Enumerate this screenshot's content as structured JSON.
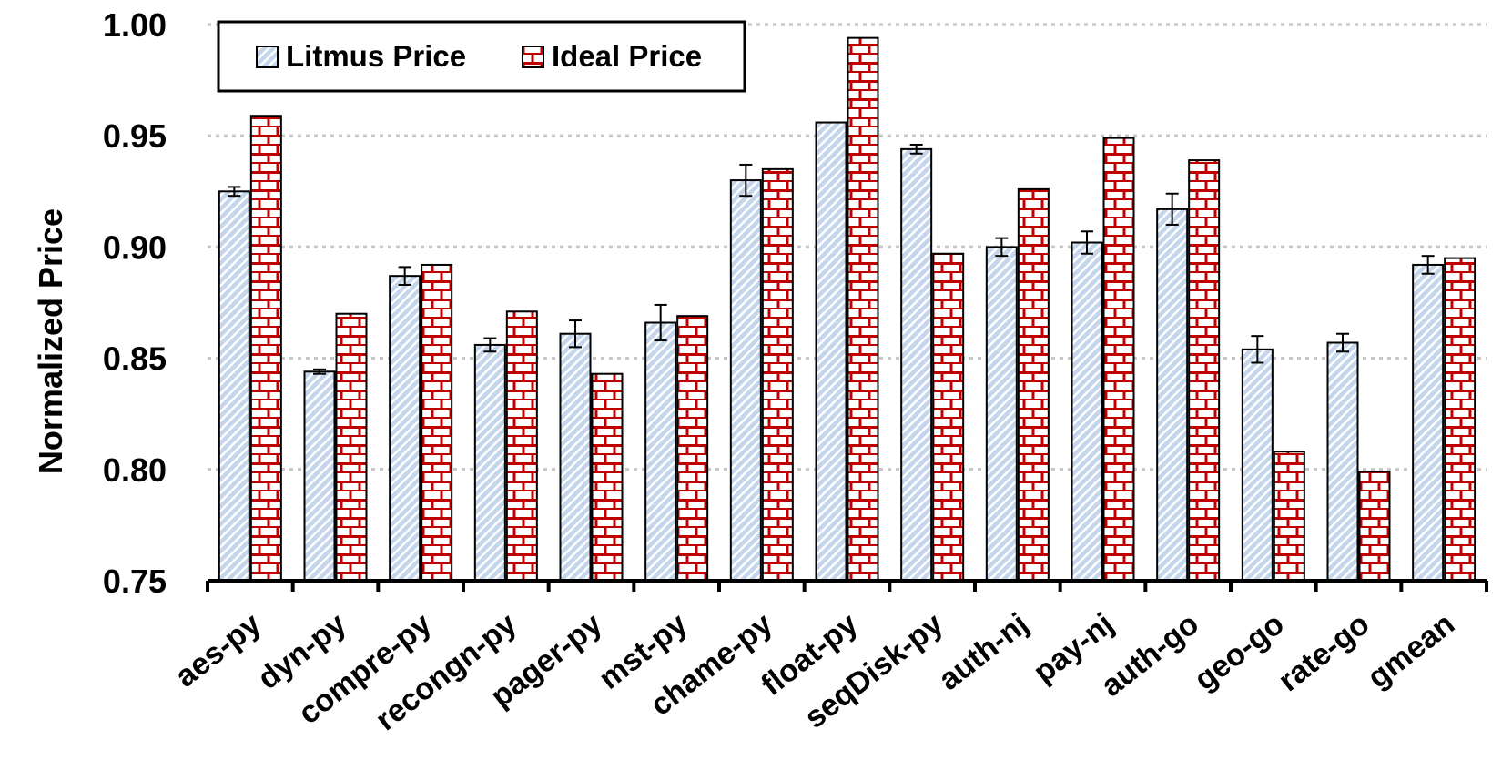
{
  "chart_data": {
    "type": "bar",
    "title": "",
    "xlabel": "",
    "ylabel": "Normalized Price",
    "ylim": [
      0.75,
      1.0
    ],
    "yticks": [
      "0.75",
      "0.80",
      "0.85",
      "0.90",
      "0.95",
      "1.00"
    ],
    "grid": "horizontal dotted",
    "legend_position": "top-left",
    "categories": [
      "aes-py",
      "dyn-py",
      "compre-py",
      "recongn-py",
      "pager-py",
      "mst-py",
      "chame-py",
      "float-py",
      "seqDisk-py",
      "auth-nj",
      "pay-nj",
      "auth-go",
      "geo-go",
      "rate-go",
      "gmean"
    ],
    "series": [
      {
        "name": "Litmus Price",
        "values": [
          0.925,
          0.844,
          0.887,
          0.856,
          0.861,
          0.866,
          0.93,
          0.956,
          0.944,
          0.9,
          0.902,
          0.917,
          0.854,
          0.857,
          0.892
        ],
        "error": [
          0.002,
          0.001,
          0.004,
          0.003,
          0.006,
          0.008,
          0.007,
          0.0,
          0.002,
          0.004,
          0.005,
          0.007,
          0.006,
          0.004,
          0.004
        ]
      },
      {
        "name": "Ideal Price",
        "values": [
          0.959,
          0.87,
          0.892,
          0.871,
          0.843,
          0.869,
          0.935,
          0.994,
          0.897,
          0.926,
          0.949,
          0.939,
          0.808,
          0.799,
          0.895
        ]
      }
    ],
    "colors": {
      "litmus_fill": "#c4d5ec",
      "litmus_stripe": "#ffffff",
      "ideal_fill": "#ffffff",
      "ideal_brick": "#c00000",
      "grid": "#c8c8c8"
    }
  }
}
